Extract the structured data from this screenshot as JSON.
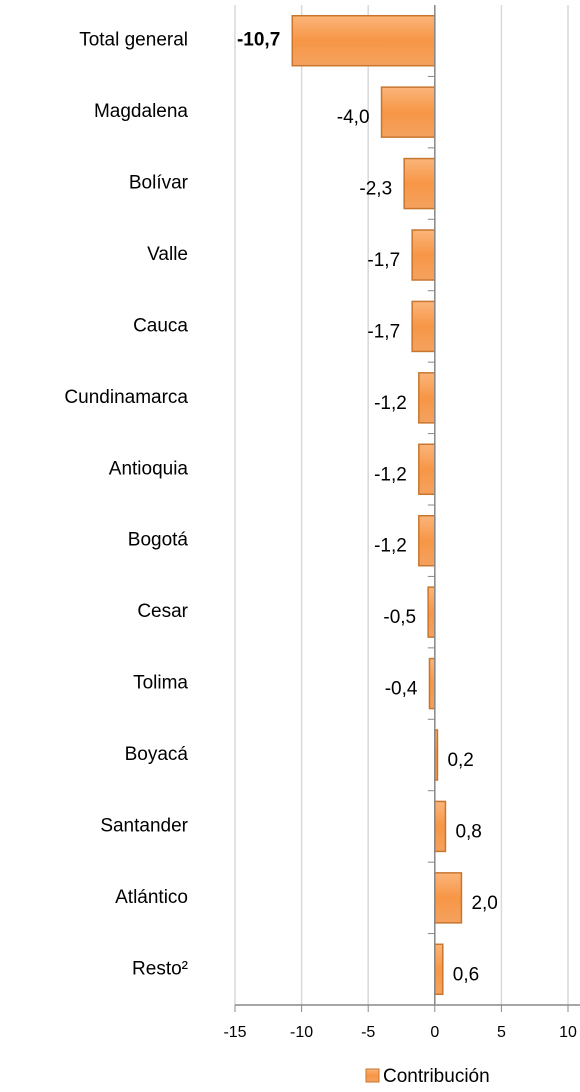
{
  "chart_data": {
    "type": "bar",
    "orientation": "horizontal",
    "categories": [
      "Total general",
      "Magdalena",
      "Bolívar",
      "Valle",
      "Cauca",
      "Cundinamarca",
      "Antioquia",
      "Bogotá",
      "Cesar",
      "Tolima",
      "Boyacá",
      "Santander",
      "Atlántico",
      "Resto²"
    ],
    "series": [
      {
        "name": "Contribución",
        "color": "#f79646",
        "values": [
          -10.7,
          -4.0,
          -2.3,
          -1.7,
          -1.7,
          -1.2,
          -1.2,
          -1.2,
          -0.5,
          -0.4,
          0.2,
          0.8,
          2.0,
          0.6
        ],
        "value_labels": [
          "-10,7",
          "-4,0",
          "-2,3",
          "-1,7",
          "-1,7",
          "-1,2",
          "-1,2",
          "-1,2",
          "-0,5",
          "-0,4",
          "0,2",
          "0,8",
          "2,0",
          "0,6"
        ]
      }
    ],
    "xlim": [
      -15,
      10
    ],
    "xticks": [
      -15,
      -10,
      -5,
      0,
      5,
      10
    ],
    "grid": true,
    "legend": "bottom"
  }
}
